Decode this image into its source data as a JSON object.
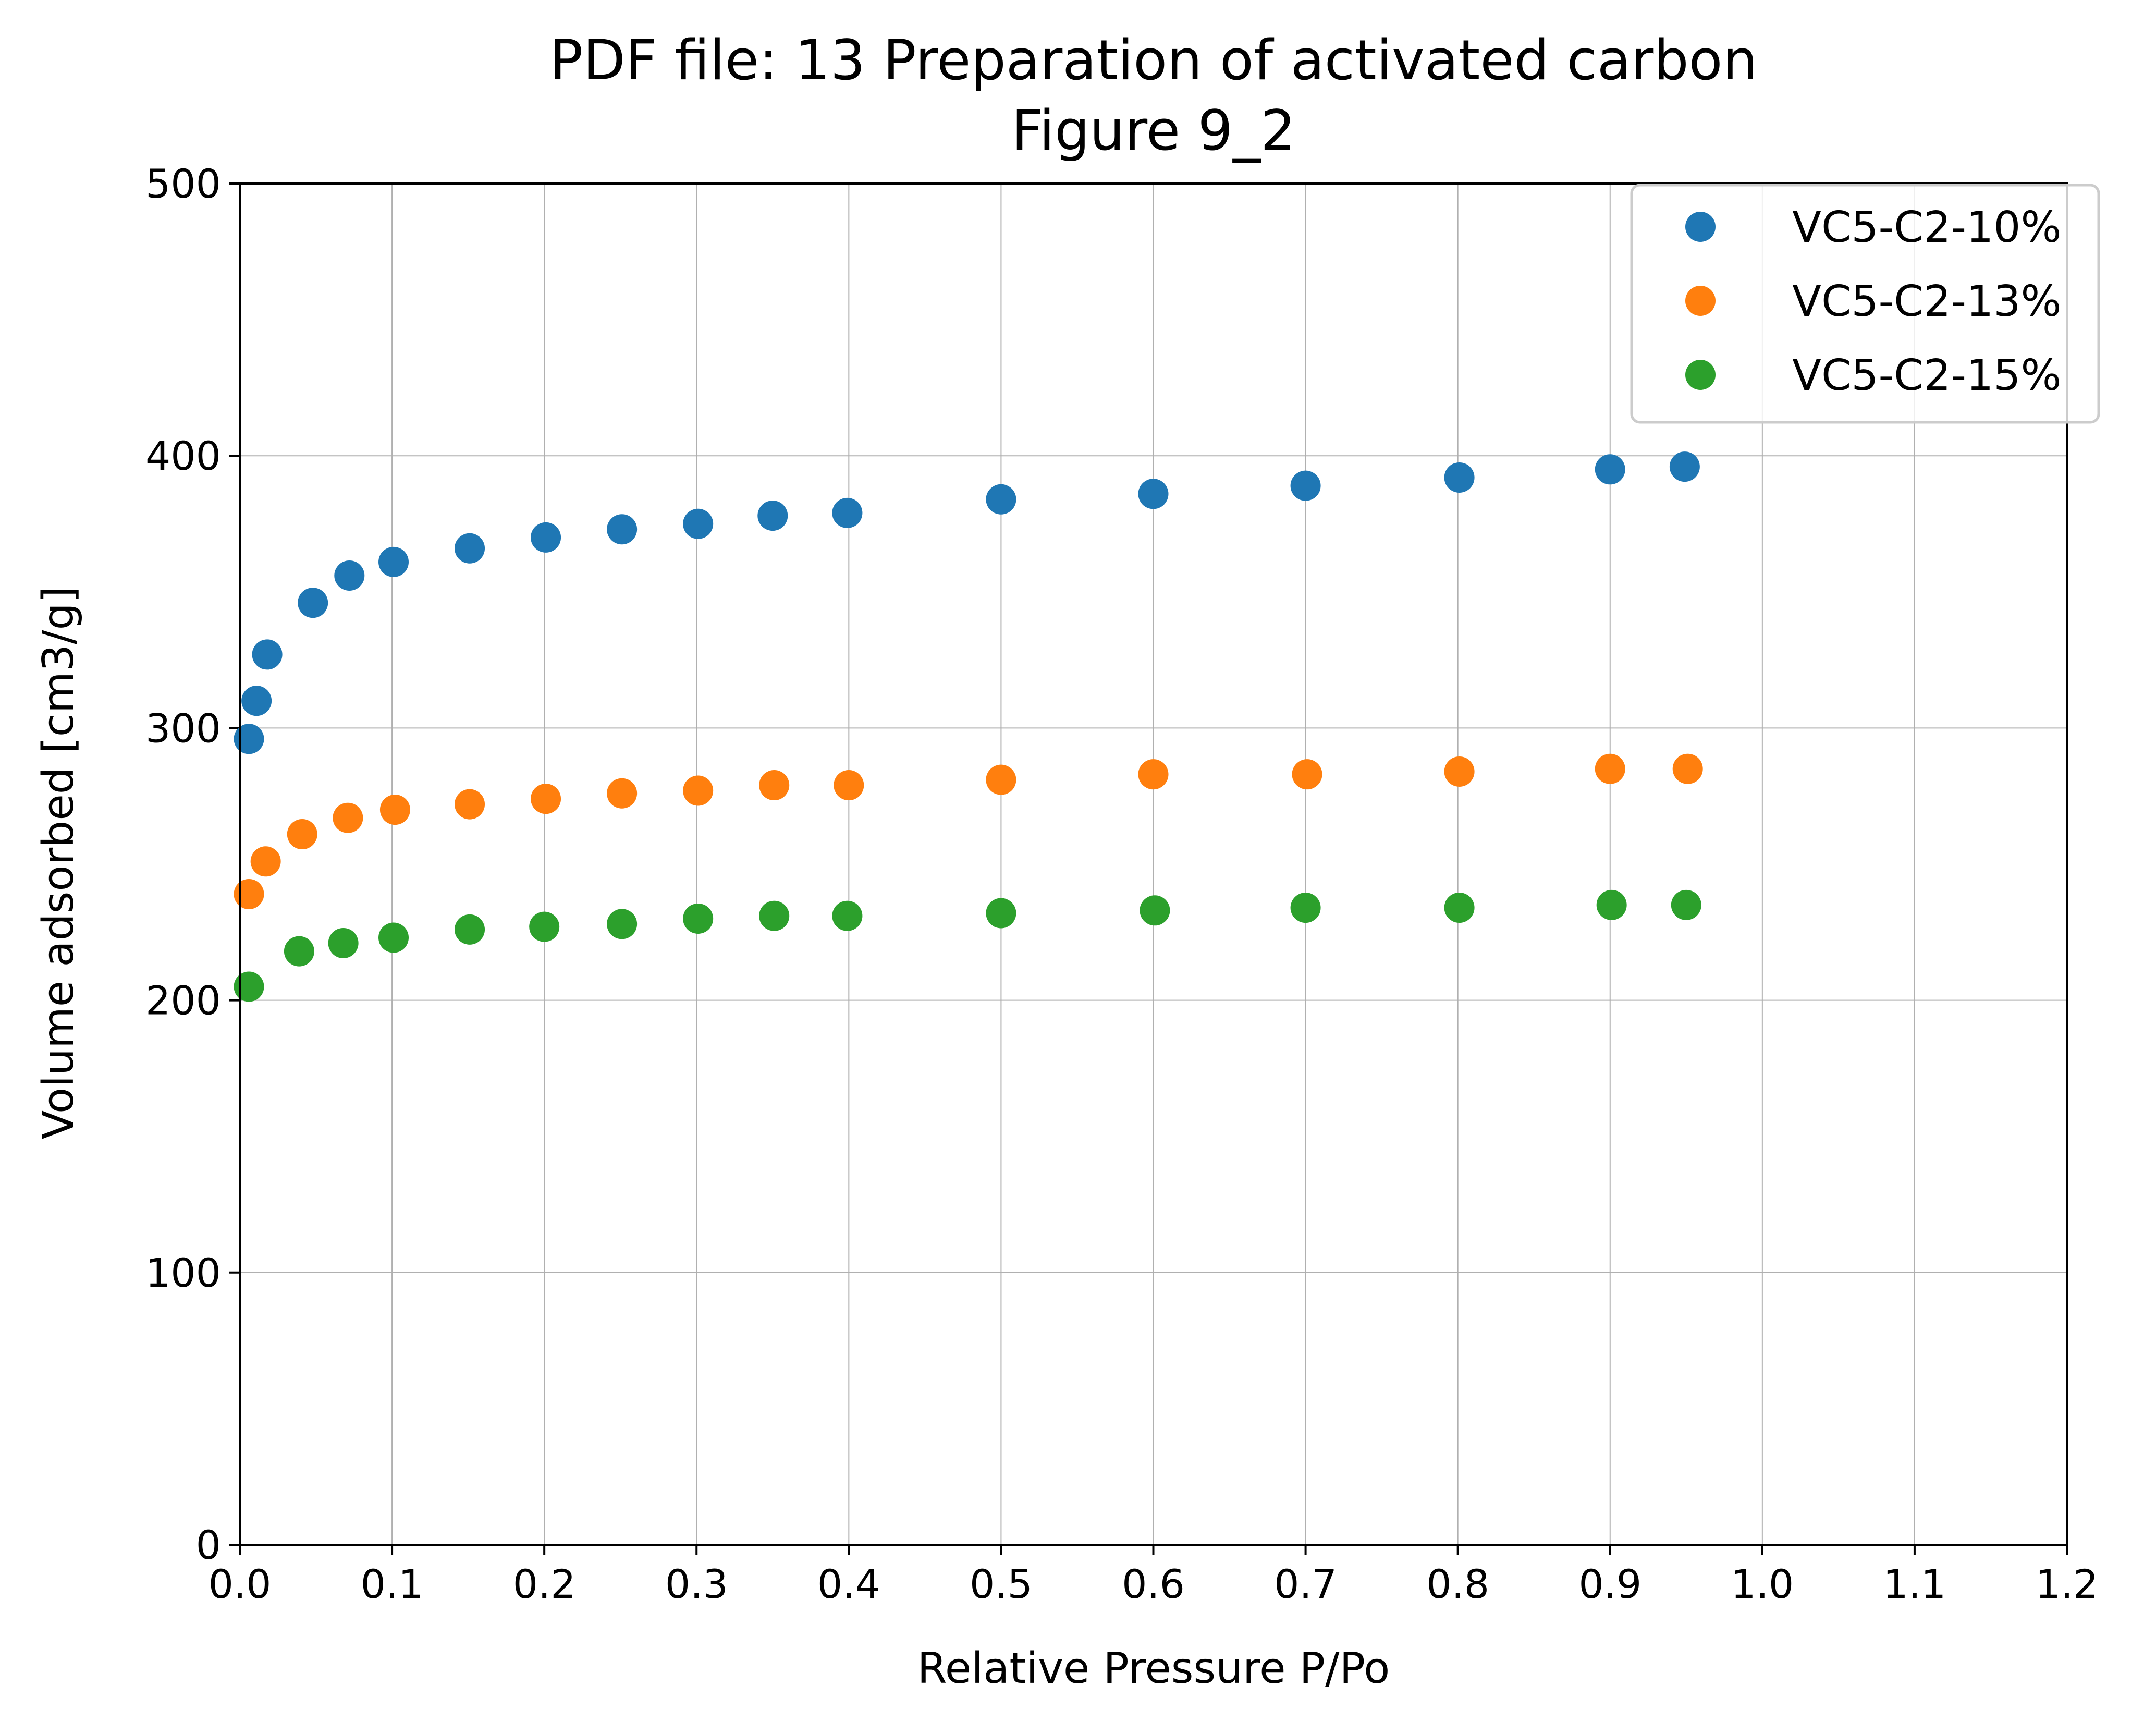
{
  "chart_data": {
    "type": "scatter",
    "title": "PDF file: 13 Preparation of activated carbon",
    "subtitle": "Figure 9_2",
    "xlabel": "Relative Pressure P/Po",
    "ylabel": "Volume adsorbed [cm3/g]",
    "xlim": [
      0.0,
      1.2
    ],
    "ylim": [
      0,
      500
    ],
    "xticks": [
      "0.0",
      "0.1",
      "0.2",
      "0.3",
      "0.4",
      "0.5",
      "0.6",
      "0.7",
      "0.8",
      "0.9",
      "1.0",
      "1.1",
      "1.2"
    ],
    "yticks": [
      "0",
      "100",
      "200",
      "300",
      "400",
      "500"
    ],
    "grid": true,
    "legend_position": "top-right",
    "series": [
      {
        "name": "VC5-C2-10%",
        "color": "#1f77b4",
        "x": [
          0.006,
          0.011,
          0.018,
          0.048,
          0.072,
          0.101,
          0.151,
          0.201,
          0.251,
          0.301,
          0.35,
          0.399,
          0.5,
          0.6,
          0.7,
          0.801,
          0.9,
          0.949
        ],
        "y": [
          296,
          310,
          327,
          346,
          356,
          361,
          366,
          370,
          373,
          375,
          378,
          379,
          384,
          386,
          389,
          392,
          395,
          396
        ]
      },
      {
        "name": "VC5-C2-13%",
        "color": "#ff7f0e",
        "x": [
          0.006,
          0.017,
          0.041,
          0.071,
          0.102,
          0.151,
          0.201,
          0.251,
          0.301,
          0.351,
          0.4,
          0.5,
          0.6,
          0.701,
          0.801,
          0.9,
          0.951
        ],
        "y": [
          239,
          251,
          261,
          267,
          270,
          272,
          274,
          276,
          277,
          279,
          279,
          281,
          283,
          283,
          284,
          285,
          285
        ]
      },
      {
        "name": "VC5-C2-15%",
        "color": "#2ca02c",
        "x": [
          0.006,
          0.039,
          0.068,
          0.101,
          0.151,
          0.2,
          0.251,
          0.301,
          0.351,
          0.399,
          0.5,
          0.601,
          0.7,
          0.801,
          0.901,
          0.95
        ],
        "y": [
          205,
          218,
          221,
          223,
          226,
          227,
          228,
          230,
          231,
          231,
          232,
          233,
          234,
          234,
          235,
          235
        ]
      }
    ]
  }
}
